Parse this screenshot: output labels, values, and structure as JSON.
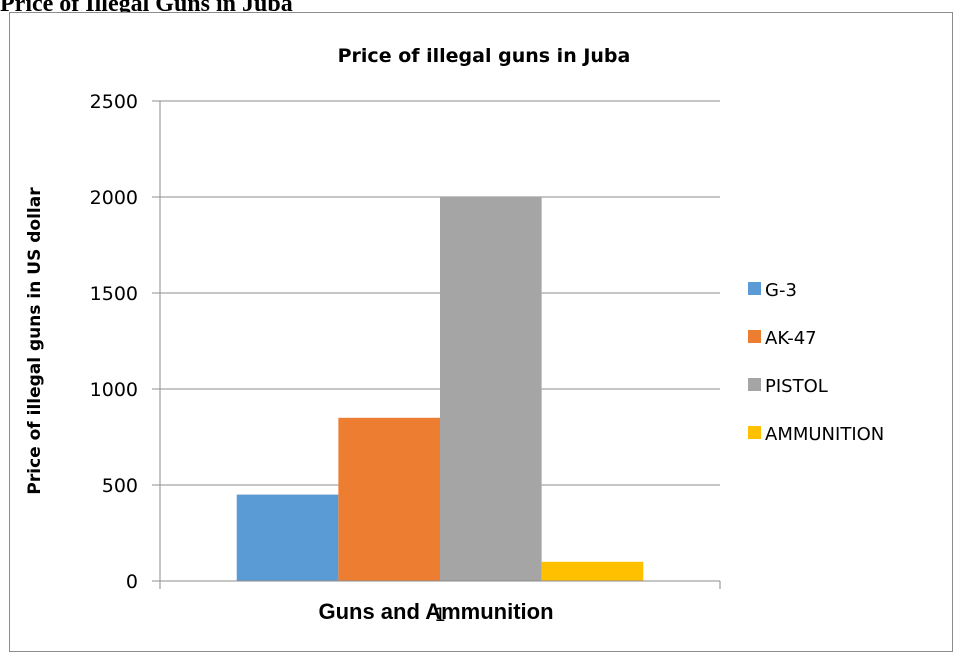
{
  "page": {
    "heading": "Price of Illegal Guns in Juba"
  },
  "chart_data": {
    "type": "bar",
    "title": "Price of illegal guns in Juba",
    "xlabel": "Guns and Ammunition",
    "ylabel": "Price of illegal guns in US dollar",
    "categories": [
      "1"
    ],
    "series": [
      {
        "name": "G-3",
        "values": [
          450
        ],
        "color": "#5b9bd5"
      },
      {
        "name": "AK-47",
        "values": [
          850
        ],
        "color": "#ed7d31"
      },
      {
        "name": "PISTOL",
        "values": [
          2000
        ],
        "color": "#a5a5a5"
      },
      {
        "name": "AMMUNITION",
        "values": [
          100
        ],
        "color": "#ffc000"
      }
    ],
    "yticks": [
      "0",
      "500",
      "1000",
      "1500",
      "2000",
      "2500"
    ],
    "ylim": [
      0,
      2500
    ],
    "grid": true,
    "legend_position": "right"
  }
}
